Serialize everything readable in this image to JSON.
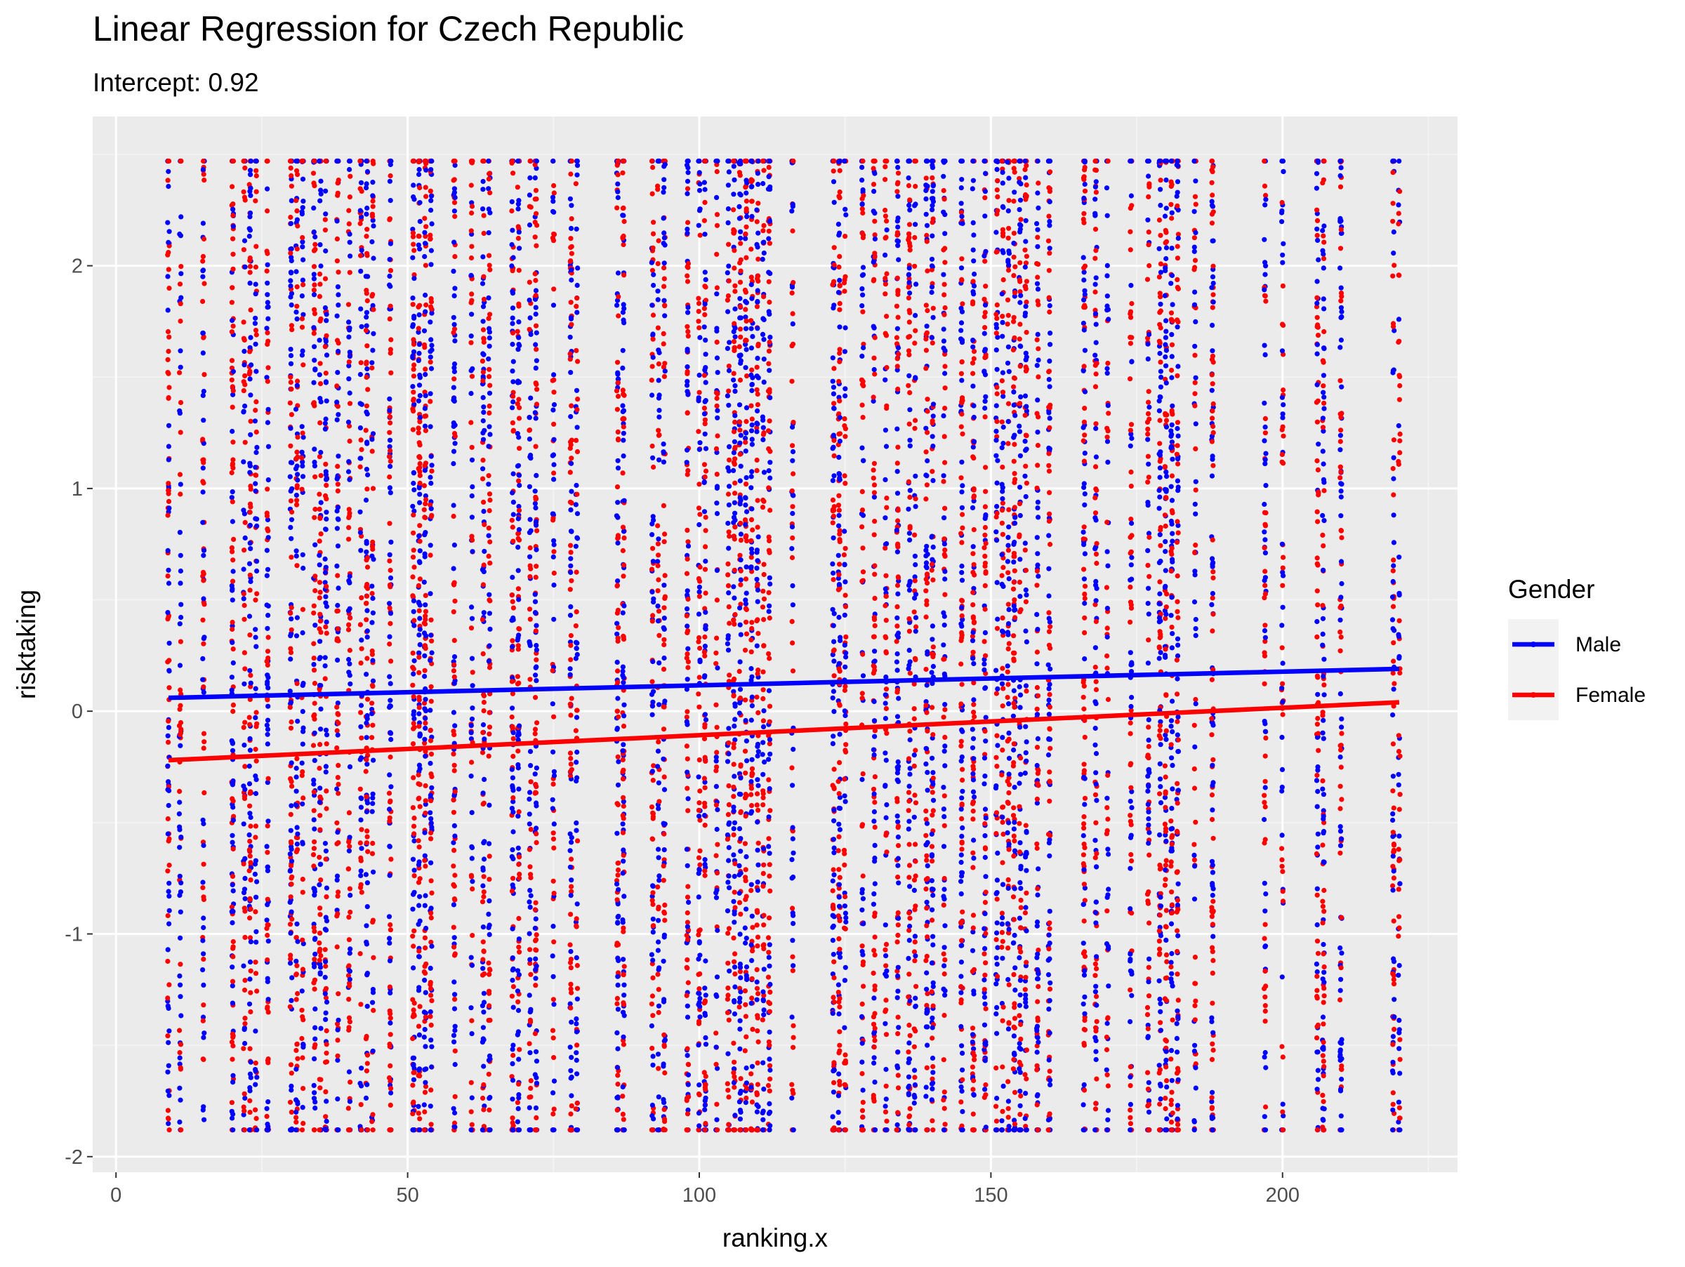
{
  "colors": {
    "panel_background": "#EBEBEB",
    "grid_major": "#FFFFFF",
    "grid_minor": "#F5F5F5",
    "axis_text": "#4D4D4D",
    "male": "#0000FF",
    "female": "#FF0000"
  },
  "chart_data": {
    "type": "scatter",
    "title": "Linear Regression for Czech Republic",
    "subtitle": "Intercept: 0.92",
    "xlabel": "ranking.x",
    "ylabel": "risktaking",
    "xlim": [
      -4,
      230
    ],
    "ylim": [
      -2.07,
      2.67
    ],
    "x_ticks": [
      0,
      50,
      100,
      150,
      200
    ],
    "x_tick_labels": [
      "0",
      "50",
      "100",
      "150",
      "200"
    ],
    "y_ticks": [
      -2,
      -1,
      0,
      1,
      2
    ],
    "y_tick_labels": [
      "-2",
      "-1",
      "0",
      "1",
      "2"
    ],
    "grid": true,
    "legend": {
      "title": "Gender",
      "placement": "right",
      "entries": [
        "Male",
        "Female"
      ]
    },
    "x_positions": [
      9,
      11,
      15,
      20,
      22,
      23,
      24,
      26,
      30,
      31,
      32,
      34,
      35,
      36,
      38,
      40,
      42,
      43,
      44,
      47,
      51,
      52,
      53,
      54,
      58,
      61,
      63,
      64,
      68,
      69,
      71,
      72,
      75,
      78,
      79,
      86,
      87,
      92,
      93,
      94,
      98,
      100,
      101,
      103,
      105,
      106,
      107,
      108,
      109,
      110,
      111,
      112,
      116,
      123,
      124,
      125,
      128,
      130,
      132,
      134,
      136,
      137,
      139,
      140,
      142,
      145,
      147,
      149,
      151,
      152,
      153,
      154,
      155,
      156,
      158,
      160,
      166,
      168,
      170,
      174,
      177,
      179,
      180,
      181,
      182,
      185,
      188,
      197,
      200,
      206,
      207,
      210,
      219,
      220
    ],
    "y_range": [
      -1.88,
      2.47
    ],
    "series": [
      {
        "name": "Male",
        "regression": {
          "x": [
            9,
            220
          ],
          "y": [
            0.06,
            0.19
          ]
        }
      },
      {
        "name": "Female",
        "regression": {
          "x": [
            9,
            220
          ],
          "y": [
            -0.22,
            0.04
          ]
        }
      }
    ]
  }
}
